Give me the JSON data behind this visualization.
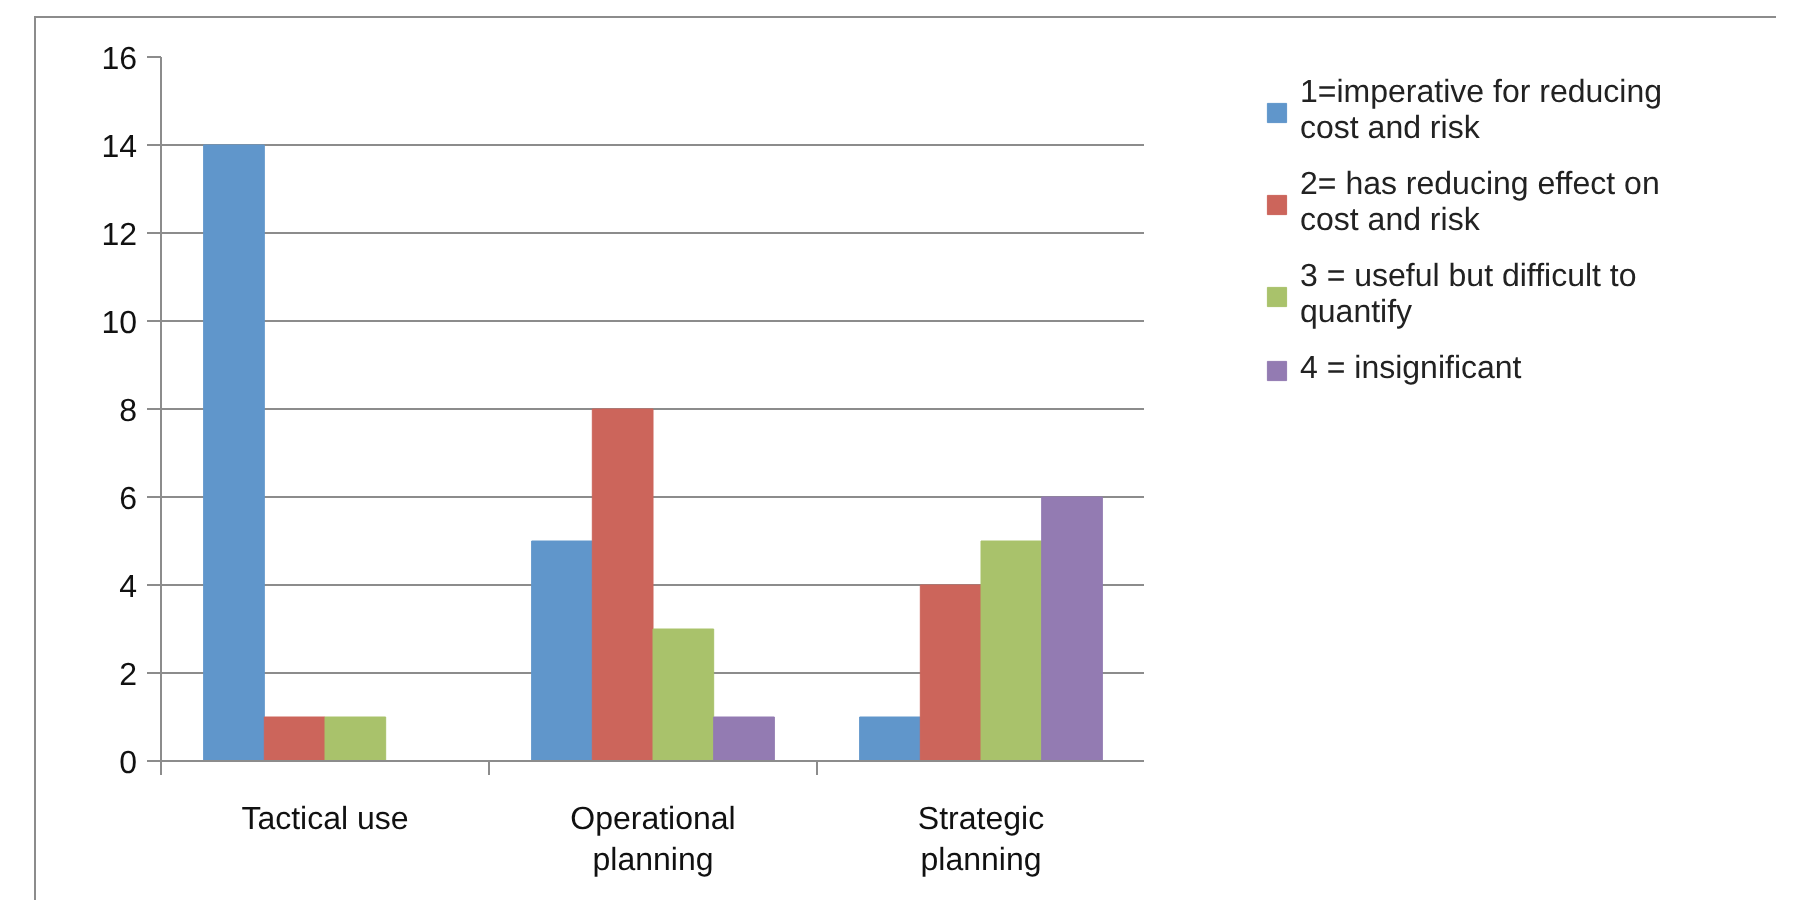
{
  "chart_data": {
    "type": "bar",
    "categories": [
      "Tactical use",
      "Operational planning",
      "Strategic planning"
    ],
    "series": [
      {
        "name": "1=imperative for reducing cost and risk",
        "color": "#6096cb",
        "values": [
          14,
          5,
          1
        ]
      },
      {
        "name": "2= has reducing effect on cost and risk",
        "color": "#cc655b",
        "values": [
          1,
          8,
          4
        ]
      },
      {
        "name": "3 = useful but difficult to quantify",
        "color": "#a9c26b",
        "values": [
          1,
          3,
          5
        ]
      },
      {
        "name": "4 = insignificant",
        "color": "#937bb2",
        "values": [
          0,
          1,
          6
        ]
      }
    ],
    "ylim": [
      0,
      16
    ],
    "yticks": [
      0,
      2,
      4,
      6,
      8,
      10,
      12,
      14,
      16
    ],
    "grid": "y",
    "legend": "right"
  }
}
